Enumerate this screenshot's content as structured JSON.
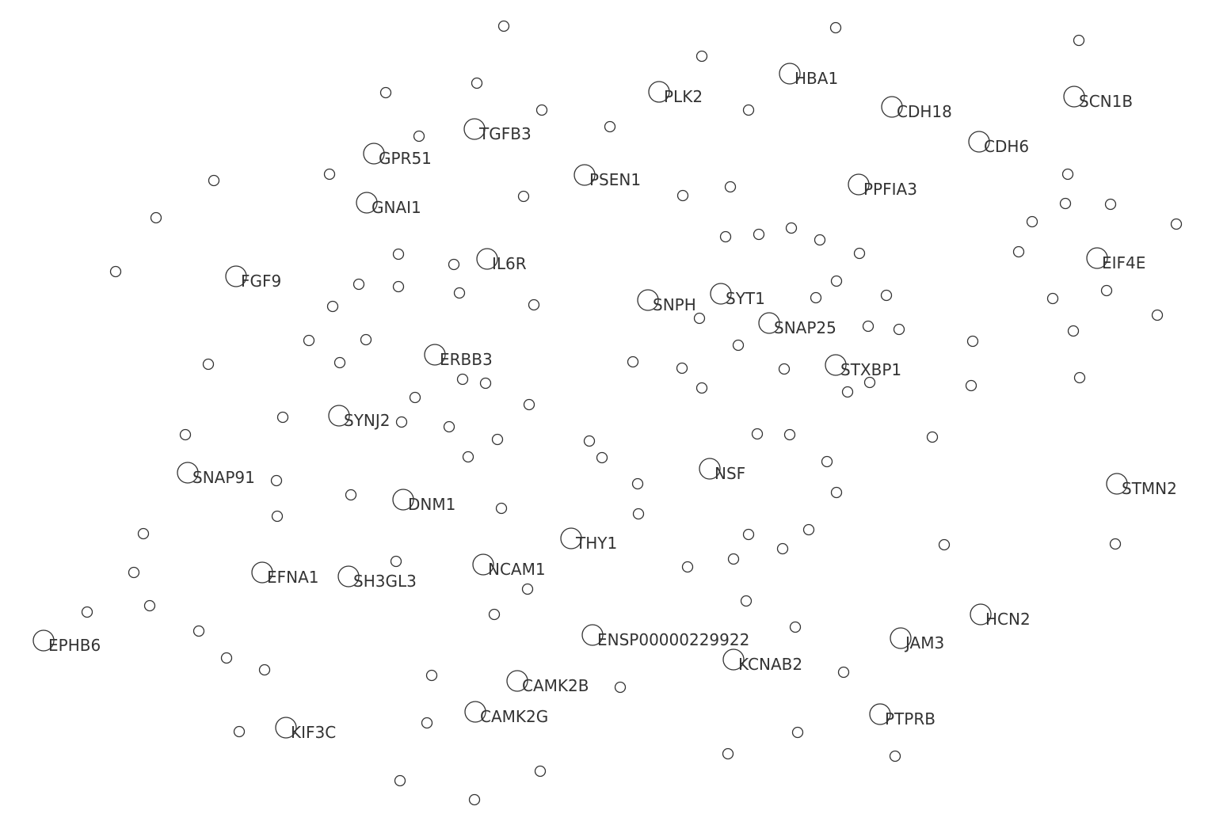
{
  "colors": {
    "background": "#ffffff",
    "node_stroke": "#333333",
    "label": "#333333"
  },
  "labeled_nodes": [
    "HBA1",
    "PLK2",
    "CDH18",
    "SCN1B",
    "TGFB3",
    "GPR51",
    "CDH6",
    "PSEN1",
    "PPFIA3",
    "GNAI1",
    "IL6R",
    "EIF4E",
    "FGF9",
    "SNPH",
    "SYT1",
    "SNAP25",
    "ERBB3",
    "STXBP1",
    "SYNJ2",
    "NSF",
    "SNAP91",
    "STMN2",
    "DNM1",
    "THY1",
    "NCAM1",
    "EFNA1",
    "SH3GL3",
    "HCN2",
    "EPHB6",
    "ENSP00000229922",
    "JAM3",
    "KCNAB2",
    "CAMK2B",
    "CAMK2G",
    "PTPRB",
    "KIF3C"
  ]
}
